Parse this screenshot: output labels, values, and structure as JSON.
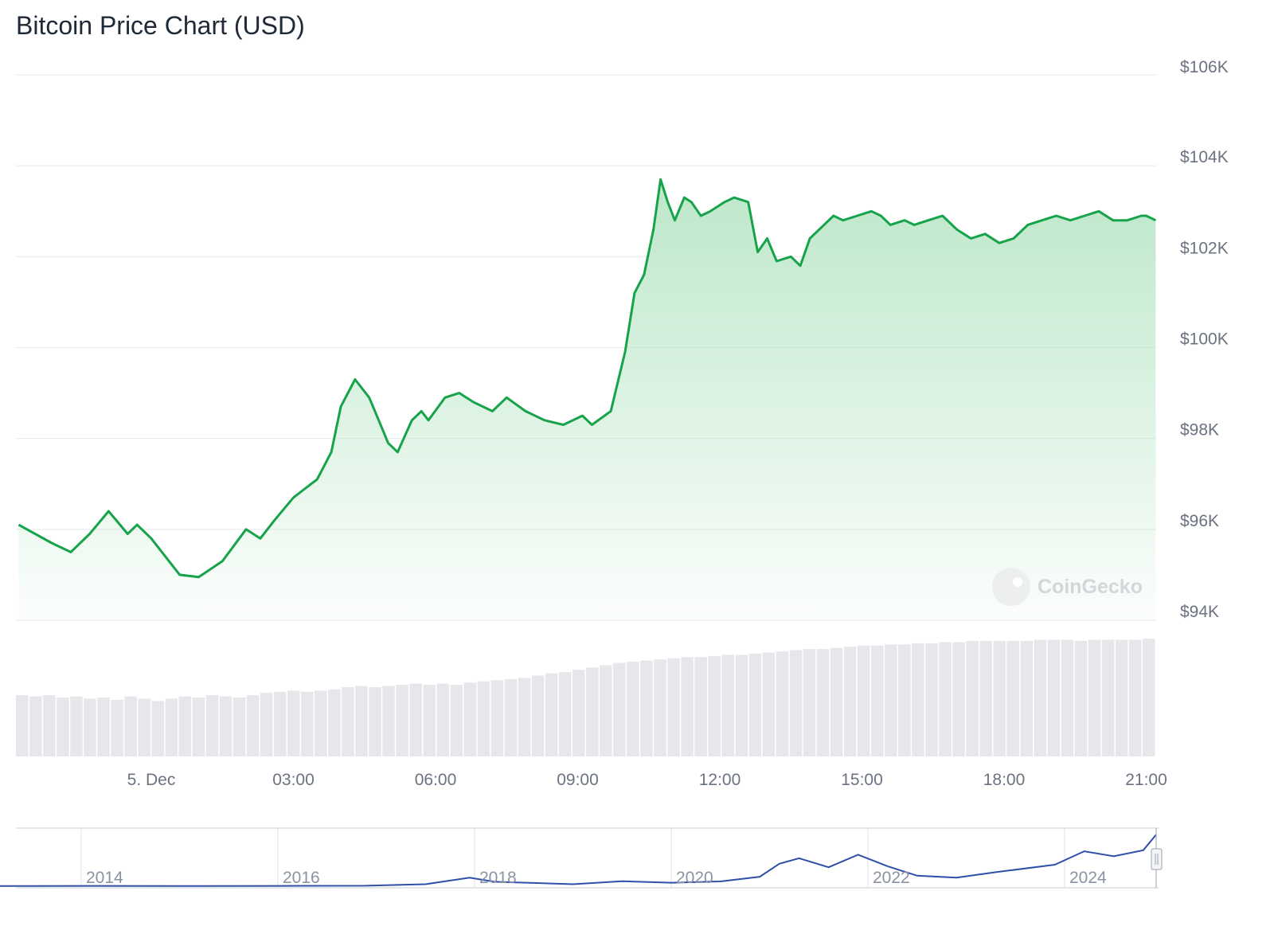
{
  "title": "Bitcoin Price Chart (USD)",
  "watermark": "CoinGecko",
  "colors": {
    "line": "#16a34a",
    "area_top": "#b9e6c6",
    "volume": "#e5e7eb",
    "navigator": "#2f4fa8"
  },
  "chart_data": [
    {
      "type": "area",
      "name": "price",
      "title": "Bitcoin Price Chart (USD)",
      "x_ticks": [
        "5. Dec",
        "03:00",
        "06:00",
        "09:00",
        "12:00",
        "15:00",
        "18:00",
        "21:00"
      ],
      "y_ticks": [
        "$94K",
        "$96K",
        "$98K",
        "$100K",
        "$102K",
        "$104K",
        "$106K"
      ],
      "ylim": [
        94000,
        106000
      ],
      "x_hours": [
        -2.8,
        -2.1,
        -1.7,
        -1.3,
        -0.9,
        -0.5,
        -0.3,
        0.0,
        0.3,
        0.6,
        1.0,
        1.5,
        2.0,
        2.3,
        2.6,
        3.0,
        3.5,
        3.8,
        4.0,
        4.3,
        4.6,
        4.8,
        5.0,
        5.2,
        5.5,
        5.7,
        5.85,
        6.2,
        6.5,
        6.8,
        7.2,
        7.5,
        7.9,
        8.3,
        8.7,
        9.1,
        9.3,
        9.7,
        10.0,
        10.2,
        10.4,
        10.6,
        10.75,
        10.9,
        11.05,
        11.25,
        11.4,
        11.6,
        11.8,
        12.1,
        12.3,
        12.6,
        12.8,
        13.0,
        13.2,
        13.5,
        13.7,
        13.9,
        14.2,
        14.4,
        14.6,
        14.9,
        15.2,
        15.4,
        15.6,
        15.9,
        16.1,
        16.4,
        16.7,
        17.0,
        17.3,
        17.6,
        17.9,
        18.2,
        18.5,
        18.8,
        19.1,
        19.4,
        19.7,
        20.0,
        20.3,
        20.6,
        20.9,
        21.0,
        21.2
      ],
      "values": [
        96100,
        95700,
        95500,
        95900,
        96400,
        95900,
        96100,
        95800,
        95400,
        95000,
        94950,
        95300,
        96000,
        95800,
        96200,
        96700,
        97100,
        97700,
        98700,
        99300,
        98900,
        98400,
        97900,
        97700,
        98400,
        98600,
        98400,
        98900,
        99000,
        98800,
        98600,
        98900,
        98600,
        98400,
        98300,
        98500,
        98300,
        98600,
        99900,
        101200,
        101600,
        102600,
        103700,
        103200,
        102800,
        103300,
        103200,
        102900,
        103000,
        103200,
        103300,
        103200,
        102100,
        102400,
        101900,
        102000,
        101800,
        102400,
        102700,
        102900,
        102800,
        102900,
        103000,
        102900,
        102700,
        102800,
        102700,
        102800,
        102900,
        102600,
        102400,
        102500,
        102300,
        102400,
        102700,
        102800,
        102900,
        102800,
        102900,
        103000,
        102800,
        102800,
        102900,
        102900,
        102800
      ]
    },
    {
      "type": "bar",
      "name": "volume",
      "values": [
        53,
        52,
        53,
        51,
        52,
        50,
        51,
        49,
        52,
        50,
        48,
        50,
        52,
        51,
        53,
        52,
        51,
        53,
        55,
        56,
        57,
        56,
        57,
        58,
        60,
        61,
        60,
        61,
        62,
        63,
        62,
        63,
        62,
        64,
        65,
        66,
        67,
        68,
        70,
        72,
        73,
        75,
        77,
        79,
        81,
        82,
        83,
        84,
        85,
        86,
        86,
        87,
        88,
        88,
        89,
        90,
        91,
        92,
        93,
        93,
        94,
        95,
        96,
        96,
        97,
        97,
        98,
        98,
        99,
        99,
        100,
        100,
        100,
        100,
        100,
        101,
        101,
        101,
        100,
        101,
        101,
        101,
        101,
        102
      ]
    },
    {
      "type": "line",
      "name": "navigator",
      "x_ticks": [
        "2014",
        "2016",
        "2018",
        "2020",
        "2022",
        "2024"
      ],
      "x_years": [
        2012.9,
        2013.5,
        2014.0,
        2015.0,
        2016.0,
        2016.9,
        2017.5,
        2017.95,
        2018.2,
        2018.6,
        2019.0,
        2019.5,
        2020.0,
        2020.5,
        2020.9,
        2021.1,
        2021.3,
        2021.6,
        2021.9,
        2022.2,
        2022.5,
        2022.9,
        2023.3,
        2023.9,
        2024.2,
        2024.5,
        2024.8,
        2024.93
      ],
      "values": [
        100,
        400,
        600,
        300,
        600,
        900,
        4000,
        17000,
        9000,
        6500,
        4000,
        10000,
        7000,
        9500,
        19000,
        45000,
        56000,
        38000,
        63000,
        40000,
        21000,
        17000,
        28000,
        43000,
        70000,
        60000,
        72000,
        103000
      ]
    }
  ]
}
